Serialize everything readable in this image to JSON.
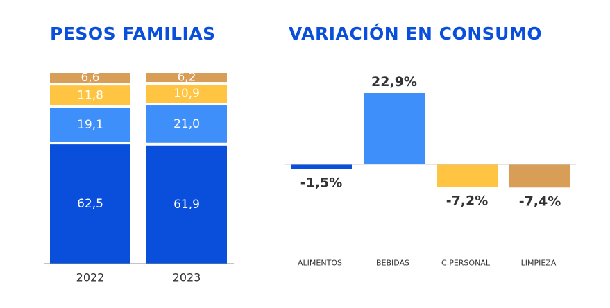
{
  "titles": {
    "left": "PESOS FAMILIAS",
    "right": "VARIACIÓN EN CONSUMO"
  },
  "colors": {
    "title": "#0a4fdc",
    "alimentos": "#0a4fdc",
    "bebidas": "#3f8ffb",
    "cuidado_personal": "#ffc542",
    "limpieza": "#d89e57"
  },
  "chart_data": [
    {
      "type": "bar",
      "stacked": true,
      "title": "PESOS FAMILIAS",
      "categories": [
        "2022",
        "2023"
      ],
      "series": [
        {
          "key": "alimentos",
          "values": [
            62.5,
            61.9
          ],
          "labels": [
            "62,5",
            "61,9"
          ]
        },
        {
          "key": "bebidas",
          "values": [
            19.1,
            21.0
          ],
          "labels": [
            "19,1",
            "21,0"
          ]
        },
        {
          "key": "cuidado_personal",
          "values": [
            11.8,
            10.9
          ],
          "labels": [
            "11,8",
            "10,9"
          ]
        },
        {
          "key": "limpieza",
          "values": [
            6.6,
            6.2
          ],
          "labels": [
            "6,6",
            "6,2"
          ]
        }
      ],
      "ylim": [
        0,
        100
      ]
    },
    {
      "type": "bar",
      "title": "VARIACIÓN EN CONSUMO",
      "categories": [
        "ALIMENTOS",
        "BEBIDAS",
        "C.PERSONAL",
        "LIMPIEZA"
      ],
      "values": [
        -1.5,
        22.9,
        -7.2,
        -7.4
      ],
      "labels": [
        "-1,5%",
        "22,9%",
        "-7,2%",
        "-7,4%"
      ],
      "series_keys": [
        "alimentos",
        "bebidas",
        "cuidado_personal",
        "limpieza"
      ],
      "unit": "%"
    }
  ]
}
